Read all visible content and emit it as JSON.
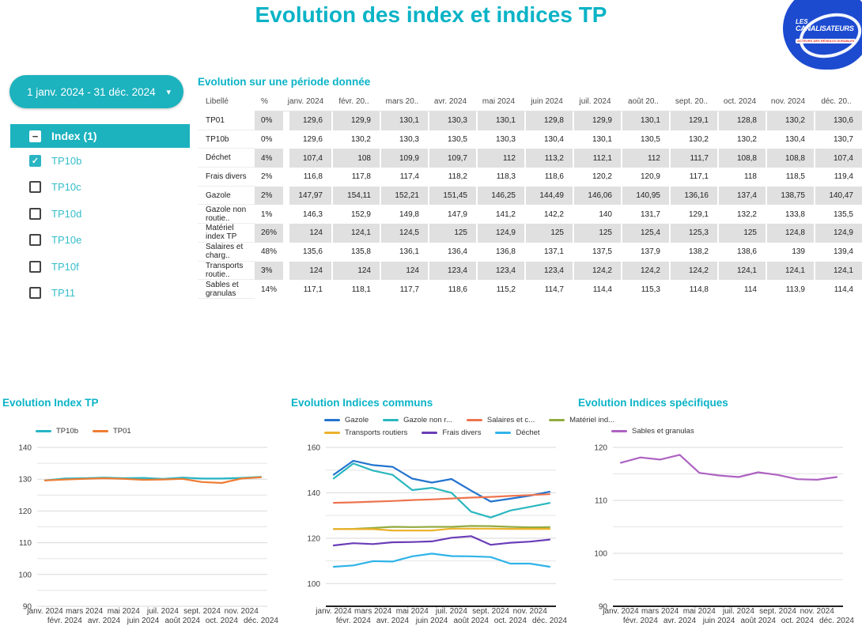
{
  "page": {
    "title": "Evolution des index et indices TP"
  },
  "icons": {
    "minus": "−",
    "check": "✓",
    "chevron_down": "▾"
  },
  "logo": {
    "line1": "LES",
    "line2": "CANALISATEURS",
    "tagline": "ACTEURS DES RÉSEAUX DURABLES"
  },
  "filters": {
    "date_range": "1 janv. 2024 - 31 déc. 2024",
    "group_label": "Index (1)",
    "group_state": "indeterminate",
    "items": [
      {
        "label": "TP10b",
        "checked": true
      },
      {
        "label": "TP10c",
        "checked": false
      },
      {
        "label": "TP10d",
        "checked": false
      },
      {
        "label": "TP10e",
        "checked": false
      },
      {
        "label": "TP10f",
        "checked": false
      },
      {
        "label": "TP11",
        "checked": false
      }
    ]
  },
  "table": {
    "title": "Evolution sur une période donnée",
    "columns": [
      "Libellé",
      "%",
      "janv. 2024",
      "févr. 20..",
      "mars 20..",
      "avr. 2024",
      "mai 2024",
      "juin 2024",
      "juil. 2024",
      "août 20..",
      "sept. 20..",
      "oct. 2024",
      "nov. 2024",
      "déc. 20.."
    ],
    "rows": [
      {
        "label": "TP01",
        "pct": "0%",
        "values": [
          "129,6",
          "129,9",
          "130,1",
          "130,3",
          "130,1",
          "129,8",
          "129,9",
          "130,1",
          "129,1",
          "128,8",
          "130,2",
          "130,6"
        ]
      },
      {
        "label": "TP10b",
        "pct": "0%",
        "values": [
          "129,6",
          "130,2",
          "130,3",
          "130,5",
          "130,3",
          "130,4",
          "130,1",
          "130,5",
          "130,2",
          "130,2",
          "130,4",
          "130,7"
        ]
      },
      {
        "label": "Déchet",
        "pct": "4%",
        "values": [
          "107,4",
          "108",
          "109,9",
          "109,7",
          "112",
          "113,2",
          "112,1",
          "112",
          "111,7",
          "108,8",
          "108,8",
          "107,4"
        ]
      },
      {
        "label": "Frais divers",
        "pct": "2%",
        "values": [
          "116,8",
          "117,8",
          "117,4",
          "118,2",
          "118,3",
          "118,6",
          "120,2",
          "120,9",
          "117,1",
          "118",
          "118,5",
          "119,4"
        ]
      },
      {
        "label": "Gazole",
        "pct": "2%",
        "values": [
          "147,97",
          "154,11",
          "152,21",
          "151,45",
          "146,25",
          "144,49",
          "146,06",
          "140,95",
          "136,16",
          "137,4",
          "138,75",
          "140,47"
        ]
      },
      {
        "label": "Gazole non routie..",
        "pct": "1%",
        "values": [
          "146,3",
          "152,9",
          "149,8",
          "147,9",
          "141,2",
          "142,2",
          "140",
          "131,7",
          "129,1",
          "132,2",
          "133,8",
          "135,5"
        ]
      },
      {
        "label": "Matériel index TP",
        "pct": "26%",
        "values": [
          "124",
          "124,1",
          "124,5",
          "125",
          "124,9",
          "125",
          "125",
          "125,4",
          "125,3",
          "125",
          "124,8",
          "124,9"
        ]
      },
      {
        "label": "Salaires et charg..",
        "pct": "48%",
        "values": [
          "135,6",
          "135,8",
          "136,1",
          "136,4",
          "136,8",
          "137,1",
          "137,5",
          "137,9",
          "138,2",
          "138,6",
          "139",
          "139,4"
        ]
      },
      {
        "label": "Transports routie..",
        "pct": "3%",
        "values": [
          "124",
          "124",
          "124",
          "123,4",
          "123,4",
          "123,4",
          "124,2",
          "124,2",
          "124,2",
          "124,1",
          "124,1",
          "124,1"
        ]
      },
      {
        "label": "Sables et granulas",
        "pct": "14%",
        "values": [
          "117,1",
          "118,1",
          "117,7",
          "118,6",
          "115,2",
          "114,7",
          "114,4",
          "115,3",
          "114,8",
          "114",
          "113,9",
          "114,4"
        ]
      }
    ]
  },
  "chart_data": [
    {
      "type": "line",
      "title": "Evolution Index TP",
      "categories": [
        "janv. 2024",
        "févr. 2024",
        "mars 2024",
        "avr. 2024",
        "mai 2024",
        "juin 2024",
        "juil. 2024",
        "août 2024",
        "sept. 2024",
        "oct. 2024",
        "nov. 2024",
        "déc. 2024"
      ],
      "ylim": [
        90,
        140
      ],
      "yticks_labeled": [
        90,
        100,
        110,
        120,
        130,
        140
      ],
      "yticks_minor": [
        95,
        105,
        115,
        125,
        135
      ],
      "dark_axis": null,
      "grid": true,
      "legend_position": "top-left",
      "legend_rows": [
        [
          "TP10b",
          "TP01"
        ]
      ],
      "series": [
        {
          "name": "TP10b",
          "color": "#26b5c4",
          "values": [
            129.6,
            130.2,
            130.3,
            130.5,
            130.3,
            130.4,
            130.1,
            130.5,
            130.2,
            130.2,
            130.4,
            130.7
          ]
        },
        {
          "name": "TP01",
          "color": "#ef7d33",
          "values": [
            129.6,
            129.9,
            130.1,
            130.3,
            130.1,
            129.8,
            129.9,
            130.1,
            129.1,
            128.8,
            130.2,
            130.6
          ]
        }
      ]
    },
    {
      "type": "line",
      "title": "Evolution Indices communs",
      "categories": [
        "janv. 2024",
        "févr. 2024",
        "mars 2024",
        "avr. 2024",
        "mai 2024",
        "juin 2024",
        "juil. 2024",
        "août 2024",
        "sept. 2024",
        "oct. 2024",
        "nov. 2024",
        "déc. 2024"
      ],
      "ylim": [
        90,
        160
      ],
      "yticks_labeled": [
        100,
        120,
        140,
        160
      ],
      "yticks_minor": [
        110,
        130,
        150
      ],
      "dark_axis": 90,
      "grid": true,
      "legend_position": "top-left",
      "legend_rows": [
        [
          "Gazole",
          "Gazole non r...",
          "Salaires et c...",
          "Matériel ind..."
        ],
        [
          "Transports routiers",
          "Frais divers",
          "Déchet"
        ]
      ],
      "series": [
        {
          "name": "Gazole",
          "color": "#2374cf",
          "values": [
            147.97,
            154.11,
            152.21,
            151.45,
            146.25,
            144.49,
            146.06,
            140.95,
            136.16,
            137.4,
            138.75,
            140.47
          ]
        },
        {
          "name": "Gazole non r...",
          "color": "#2ab7bf",
          "values": [
            146.3,
            152.9,
            149.8,
            147.9,
            141.2,
            142.2,
            140,
            131.7,
            129.1,
            132.2,
            133.8,
            135.5
          ]
        },
        {
          "name": "Salaires et c...",
          "color": "#ee744e",
          "values": [
            135.6,
            135.8,
            136.1,
            136.4,
            136.8,
            137.1,
            137.5,
            137.9,
            138.2,
            138.6,
            139,
            139.4
          ]
        },
        {
          "name": "Matériel ind...",
          "color": "#92ab40",
          "values": [
            124,
            124.1,
            124.5,
            125,
            124.9,
            125,
            125,
            125.4,
            125.3,
            125,
            124.8,
            124.9
          ]
        },
        {
          "name": "Transports routiers",
          "color": "#ecb22a",
          "values": [
            124,
            124,
            124,
            123.4,
            123.4,
            123.4,
            124.2,
            124.2,
            124.2,
            124.1,
            124.1,
            124.1
          ]
        },
        {
          "name": "Frais divers",
          "color": "#6a3db8",
          "values": [
            116.8,
            117.8,
            117.4,
            118.2,
            118.3,
            118.6,
            120.2,
            120.9,
            117.1,
            118,
            118.5,
            119.4
          ]
        },
        {
          "name": "Déchet",
          "color": "#30b3e8",
          "values": [
            107.4,
            108,
            109.9,
            109.7,
            112,
            113.2,
            112.1,
            112,
            111.7,
            108.8,
            108.8,
            107.4
          ]
        }
      ]
    },
    {
      "type": "line",
      "title": "Evolution Indices spécifiques",
      "categories": [
        "janv. 2024",
        "févr. 2024",
        "mars 2024",
        "avr. 2024",
        "mai 2024",
        "juin 2024",
        "juil. 2024",
        "août 2024",
        "sept. 2024",
        "oct. 2024",
        "nov. 2024",
        "déc. 2024"
      ],
      "ylim": [
        90,
        120
      ],
      "yticks_labeled": [
        90,
        100,
        110,
        120
      ],
      "yticks_minor": [
        95,
        105,
        115
      ],
      "dark_axis": 90,
      "grid": true,
      "legend_position": "top-left",
      "legend_rows": [
        [
          "Sables et granulas"
        ]
      ],
      "series": [
        {
          "name": "Sables et granulas",
          "color": "#ae63c2",
          "values": [
            117.1,
            118.1,
            117.7,
            118.6,
            115.2,
            114.7,
            114.4,
            115.3,
            114.8,
            114,
            113.9,
            114.4
          ]
        }
      ]
    }
  ],
  "colors": {
    "accent": "#0ab3c6",
    "teal_fill": "#1cb2be",
    "table_stripe": "#e0e0e0",
    "logo_blue": "#1d4bd0",
    "logo_red": "#e0312a"
  }
}
